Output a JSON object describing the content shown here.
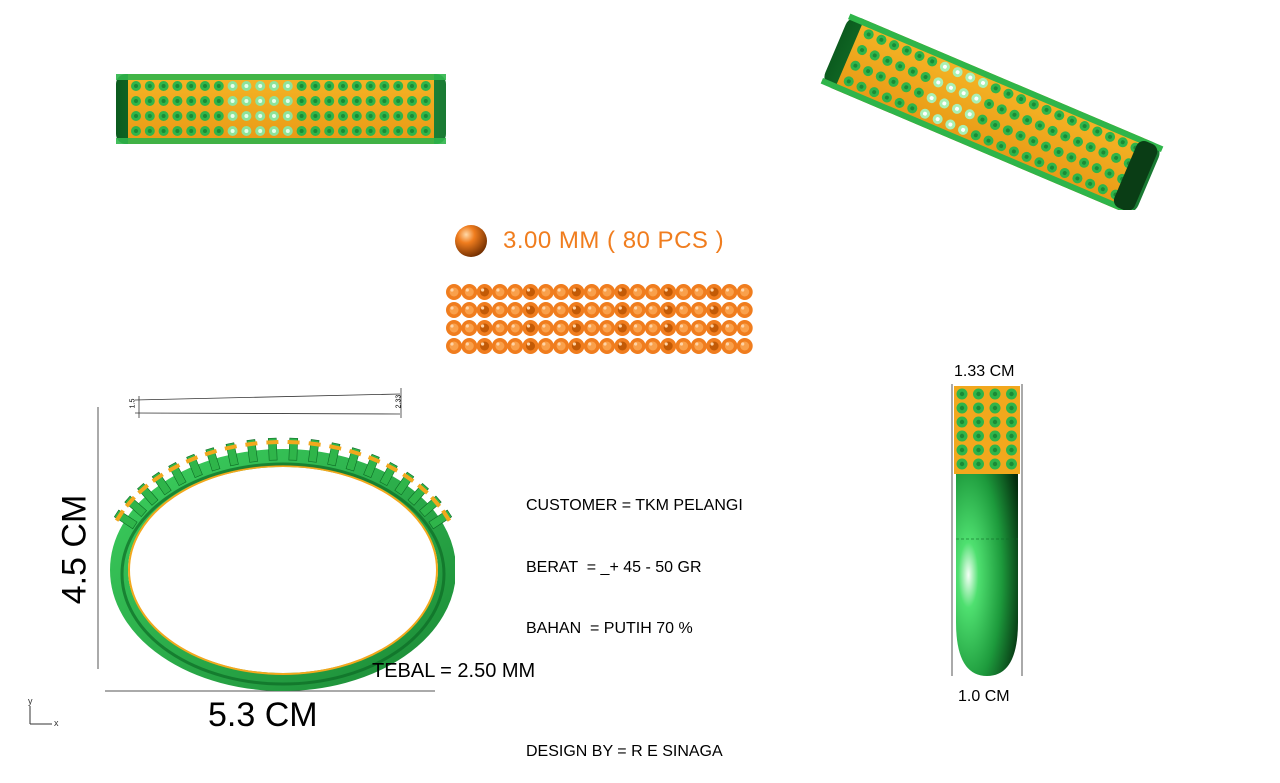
{
  "stone": {
    "label": "3.00 MM ( 80 PCS )",
    "color": "#f07d1e",
    "rows": 4,
    "cols": 20
  },
  "spec": {
    "customer": "CUSTOMER = TKM PELANGI",
    "weight": "BERAT  = _+ 45 - 50 GR",
    "material": "BAHAN  = PUTIH 70 %",
    "designer": "DESIGN BY = R E SINAGA"
  },
  "dimensions": {
    "height": "4.5 CM",
    "width": "5.3 CM",
    "thickness": "TEBAL = 2.50 MM",
    "side_top": "1.33 CM",
    "side_bottom": "1.0 CM",
    "small_left": "1.5",
    "small_right": "2.33"
  },
  "axes": {
    "y": "y",
    "x": "x"
  },
  "colors": {
    "metal_green": "#2fb54a",
    "metal_dark": "#0d6b25",
    "gold": "#f2a81d",
    "stone_orange": "#f07d1e"
  }
}
